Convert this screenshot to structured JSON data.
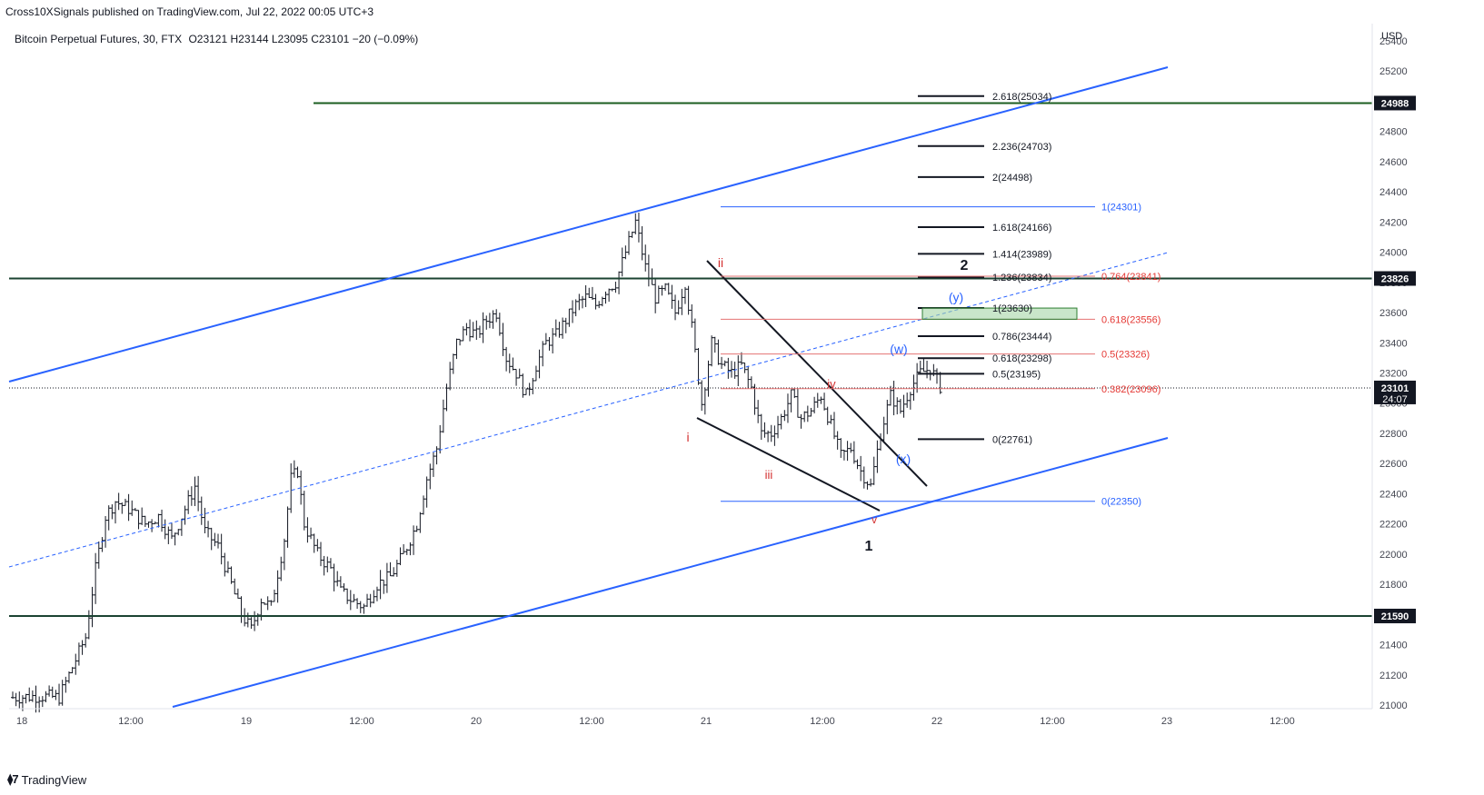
{
  "header": {
    "published": "Cross10XSignals published on TradingView.com, Jul 22, 2022 00:05 UTC+3",
    "symbol": "Bitcoin Perpetual Futures, 30, FTX",
    "ohlc": "O23121 H23144 L23095 C23101 −20 (−0.09%)"
  },
  "footer": {
    "logo_text": "TradingView",
    "logo_icon": "tradingview-logo-icon"
  },
  "chart_data": {
    "type": "candlestick",
    "currency": "USD",
    "ylim": [
      21000,
      25550
    ],
    "y_ticks": [
      21000,
      21200,
      21400,
      21600,
      21800,
      22000,
      22200,
      22400,
      22600,
      22800,
      23000,
      23200,
      23400,
      23600,
      23800,
      24000,
      24200,
      24400,
      24600,
      24800,
      25000,
      25200,
      25400
    ],
    "x_ticks": [
      "18",
      "12:00",
      "19",
      "12:00",
      "20",
      "12:00",
      "21",
      "12:00",
      "22",
      "12:00",
      "23",
      "12:00"
    ],
    "current_price": {
      "label": "23101",
      "countdown": "24:07",
      "value": 23101
    },
    "horizontal_levels": [
      {
        "label": "24988",
        "value": 24988,
        "color": "#1b5e20"
      },
      {
        "label": "23826",
        "value": 23826,
        "color": "#1b4332"
      },
      {
        "label": "21590",
        "value": 21590,
        "color": "#1b4332"
      }
    ],
    "fib_extension_black": [
      {
        "label": "2.618(25034)",
        "value": 25034
      },
      {
        "label": "2.236(24703)",
        "value": 24703
      },
      {
        "label": "2(24498)",
        "value": 24498
      },
      {
        "label": "1.618(24166)",
        "value": 24166
      },
      {
        "label": "1.414(23989)",
        "value": 23989
      },
      {
        "label": "1.236(23834)",
        "value": 23834
      },
      {
        "label": "1(23630)",
        "value": 23630
      },
      {
        "label": "0.786(23444)",
        "value": 23444
      },
      {
        "label": "0.618(23298)",
        "value": 23298
      },
      {
        "label": "0.5(23195)",
        "value": 23195
      },
      {
        "label": "0(22761)",
        "value": 22761
      }
    ],
    "fib_retracement_red": [
      {
        "label": "0.764(23841)",
        "value": 23841
      },
      {
        "label": "0.618(23556)",
        "value": 23556
      },
      {
        "label": "0.5(23326)",
        "value": 23326
      },
      {
        "label": "0.382(23096)",
        "value": 23096
      }
    ],
    "fib_blue": [
      {
        "label": "1(24301)",
        "value": 24301
      },
      {
        "label": "0(22350)",
        "value": 22350
      }
    ],
    "wave_labels": [
      {
        "text": "i",
        "color": "#d32f2f"
      },
      {
        "text": "ii",
        "color": "#d32f2f"
      },
      {
        "text": "iii",
        "color": "#d32f2f"
      },
      {
        "text": "iv",
        "color": "#d32f2f"
      },
      {
        "text": "v",
        "color": "#d32f2f"
      },
      {
        "text": "1",
        "color": "#131722"
      },
      {
        "text": "2",
        "color": "#131722"
      },
      {
        "text": "(w)",
        "color": "#2962ff"
      },
      {
        "text": "(x)",
        "color": "#2962ff"
      },
      {
        "text": "(y)",
        "color": "#2962ff"
      }
    ],
    "candle_seed_path": [
      [
        0,
        21050
      ],
      [
        8,
        21060
      ],
      [
        14,
        21050
      ],
      [
        18,
        21250
      ],
      [
        22,
        21450
      ],
      [
        25,
        21900
      ],
      [
        28,
        22250
      ],
      [
        31,
        22350
      ],
      [
        35,
        22300
      ],
      [
        40,
        22200
      ],
      [
        44,
        22250
      ],
      [
        48,
        22100
      ],
      [
        52,
        22300
      ],
      [
        55,
        22450
      ],
      [
        58,
        22150
      ],
      [
        62,
        22050
      ],
      [
        66,
        21800
      ],
      [
        69,
        21600
      ],
      [
        72,
        21500
      ],
      [
        75,
        21700
      ],
      [
        78,
        21650
      ],
      [
        82,
        22100
      ],
      [
        84,
        22500
      ],
      [
        86,
        22550
      ],
      [
        88,
        22200
      ],
      [
        92,
        22000
      ],
      [
        96,
        21900
      ],
      [
        99,
        21750
      ],
      [
        102,
        21700
      ],
      [
        106,
        21650
      ],
      [
        110,
        21800
      ],
      [
        114,
        21850
      ],
      [
        118,
        22000
      ],
      [
        122,
        22200
      ],
      [
        125,
        22500
      ],
      [
        128,
        22700
      ],
      [
        131,
        23100
      ],
      [
        134,
        23400
      ],
      [
        137,
        23500
      ],
      [
        140,
        23450
      ],
      [
        143,
        23550
      ],
      [
        146,
        23600
      ],
      [
        149,
        23300
      ],
      [
        152,
        23200
      ],
      [
        155,
        23050
      ],
      [
        158,
        23250
      ],
      [
        161,
        23400
      ],
      [
        164,
        23450
      ],
      [
        167,
        23550
      ],
      [
        170,
        23650
      ],
      [
        173,
        23700
      ],
      [
        176,
        23650
      ],
      [
        179,
        23750
      ],
      [
        182,
        23800
      ],
      [
        185,
        24000
      ],
      [
        188,
        24200
      ],
      [
        191,
        23900
      ],
      [
        194,
        23700
      ],
      [
        197,
        23750
      ],
      [
        200,
        23600
      ],
      [
        203,
        23800
      ],
      [
        205,
        23500
      ],
      [
        208,
        23000
      ],
      [
        211,
        23400
      ],
      [
        214,
        23250
      ],
      [
        217,
        23200
      ],
      [
        220,
        23250
      ],
      [
        223,
        23100
      ],
      [
        226,
        22800
      ],
      [
        229,
        22800
      ],
      [
        232,
        22900
      ],
      [
        235,
        23050
      ],
      [
        238,
        22900
      ],
      [
        241,
        22950
      ],
      [
        244,
        23050
      ],
      [
        247,
        22850
      ],
      [
        250,
        22650
      ],
      [
        253,
        22700
      ],
      [
        256,
        22550
      ],
      [
        259,
        22450
      ],
      [
        262,
        22800
      ],
      [
        265,
        23050
      ],
      [
        268,
        22950
      ],
      [
        271,
        23100
      ],
      [
        274,
        23200
      ],
      [
        277,
        23230
      ],
      [
        280,
        23110
      ]
    ]
  }
}
